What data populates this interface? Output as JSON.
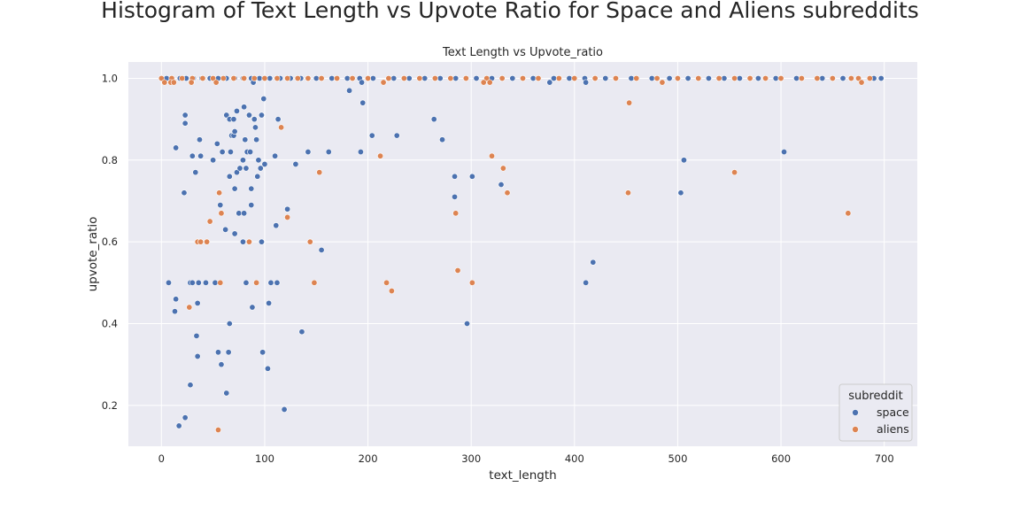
{
  "suptitle": "Histogram of Text Length vs Upvote Ratio for Space and Aliens subreddits",
  "chart_data": {
    "type": "scatter",
    "title": "Text Length vs Upvote_ratio",
    "xlabel": "text_length",
    "ylabel": "upvote_ratio",
    "xlim": [
      -32,
      732
    ],
    "ylim": [
      0.1,
      1.04
    ],
    "xticks": [
      0,
      100,
      200,
      300,
      400,
      500,
      600,
      700
    ],
    "yticks": [
      0.2,
      0.4,
      0.6,
      0.8,
      1.0
    ],
    "ytick_labels": [
      "0.2",
      "0.4",
      "0.6",
      "0.8",
      "1.0"
    ],
    "grid": true,
    "legend": {
      "title": "subreddit",
      "position": "lower-right"
    },
    "series": [
      {
        "name": "space",
        "color": "#4c72b0",
        "points": [
          [
            5,
            1.0
          ],
          [
            18,
            1.0
          ],
          [
            24,
            1.0
          ],
          [
            31,
            1.0
          ],
          [
            39,
            1.0
          ],
          [
            47,
            1.0
          ],
          [
            55,
            1.0
          ],
          [
            63,
            1.0
          ],
          [
            71,
            1.0
          ],
          [
            79,
            1.0
          ],
          [
            87,
            1.0
          ],
          [
            95,
            1.0
          ],
          [
            105,
            1.0
          ],
          [
            115,
            1.0
          ],
          [
            125,
            1.0
          ],
          [
            135,
            1.0
          ],
          [
            150,
            1.0
          ],
          [
            165,
            1.0
          ],
          [
            180,
            1.0
          ],
          [
            192,
            1.0
          ],
          [
            205,
            1.0
          ],
          [
            225,
            1.0
          ],
          [
            240,
            1.0
          ],
          [
            255,
            1.0
          ],
          [
            270,
            1.0
          ],
          [
            285,
            1.0
          ],
          [
            305,
            1.0
          ],
          [
            320,
            1.0
          ],
          [
            340,
            1.0
          ],
          [
            360,
            1.0
          ],
          [
            380,
            1.0
          ],
          [
            395,
            1.0
          ],
          [
            410,
            1.0
          ],
          [
            430,
            1.0
          ],
          [
            455,
            1.0
          ],
          [
            475,
            1.0
          ],
          [
            492,
            1.0
          ],
          [
            510,
            1.0
          ],
          [
            530,
            1.0
          ],
          [
            545,
            1.0
          ],
          [
            560,
            1.0
          ],
          [
            578,
            1.0
          ],
          [
            595,
            1.0
          ],
          [
            615,
            1.0
          ],
          [
            640,
            1.0
          ],
          [
            660,
            1.0
          ],
          [
            690,
            1.0
          ],
          [
            697,
            1.0
          ],
          [
            7,
            0.5
          ],
          [
            14,
            0.46
          ],
          [
            13,
            0.43
          ],
          [
            14,
            0.83
          ],
          [
            17,
            0.15
          ],
          [
            23,
            0.91
          ],
          [
            23,
            0.89
          ],
          [
            22,
            0.72
          ],
          [
            23,
            0.17
          ],
          [
            28,
            0.25
          ],
          [
            28,
            0.5
          ],
          [
            30,
            0.5
          ],
          [
            30,
            0.81
          ],
          [
            33,
            0.77
          ],
          [
            34,
            0.37
          ],
          [
            35,
            0.32
          ],
          [
            35,
            0.45
          ],
          [
            36,
            0.5
          ],
          [
            37,
            0.85
          ],
          [
            38,
            0.81
          ],
          [
            43,
            0.5
          ],
          [
            50,
            0.8
          ],
          [
            52,
            0.5
          ],
          [
            54,
            0.84
          ],
          [
            55,
            0.33
          ],
          [
            57,
            0.69
          ],
          [
            58,
            0.3
          ],
          [
            59,
            0.82
          ],
          [
            62,
            0.63
          ],
          [
            63,
            0.23
          ],
          [
            63,
            0.91
          ],
          [
            65,
            0.33
          ],
          [
            66,
            0.9
          ],
          [
            66,
            0.76
          ],
          [
            66,
            0.4
          ],
          [
            67,
            0.82
          ],
          [
            68,
            0.86
          ],
          [
            70,
            0.9
          ],
          [
            70,
            0.86
          ],
          [
            71,
            0.73
          ],
          [
            71,
            0.62
          ],
          [
            71,
            0.87
          ],
          [
            73,
            0.92
          ],
          [
            73,
            0.77
          ],
          [
            75,
            0.67
          ],
          [
            76,
            0.78
          ],
          [
            79,
            0.6
          ],
          [
            79,
            0.8
          ],
          [
            80,
            0.67
          ],
          [
            80,
            0.93
          ],
          [
            81,
            0.85
          ],
          [
            82,
            0.78
          ],
          [
            82,
            0.5
          ],
          [
            83,
            0.82
          ],
          [
            85,
            0.91
          ],
          [
            86,
            0.82
          ],
          [
            87,
            0.73
          ],
          [
            87,
            0.69
          ],
          [
            88,
            0.44
          ],
          [
            89,
            0.99
          ],
          [
            90,
            0.9
          ],
          [
            91,
            0.88
          ],
          [
            92,
            0.85
          ],
          [
            93,
            0.76
          ],
          [
            94,
            0.8
          ],
          [
            96,
            0.78
          ],
          [
            97,
            0.91
          ],
          [
            97,
            0.6
          ],
          [
            98,
            0.33
          ],
          [
            99,
            0.95
          ],
          [
            100,
            0.79
          ],
          [
            103,
            0.29
          ],
          [
            104,
            0.45
          ],
          [
            106,
            0.5
          ],
          [
            110,
            0.81
          ],
          [
            111,
            0.64
          ],
          [
            112,
            0.5
          ],
          [
            113,
            0.9
          ],
          [
            119,
            0.19
          ],
          [
            122,
            0.68
          ],
          [
            130,
            0.79
          ],
          [
            136,
            0.38
          ],
          [
            142,
            0.82
          ],
          [
            155,
            0.58
          ],
          [
            162,
            0.82
          ],
          [
            182,
            0.97
          ],
          [
            193,
            0.82
          ],
          [
            194,
            0.99
          ],
          [
            195,
            0.94
          ],
          [
            204,
            0.86
          ],
          [
            228,
            0.86
          ],
          [
            264,
            0.9
          ],
          [
            272,
            0.85
          ],
          [
            284,
            0.76
          ],
          [
            284,
            0.71
          ],
          [
            296,
            0.4
          ],
          [
            301,
            0.76
          ],
          [
            329,
            0.74
          ],
          [
            376,
            0.99
          ],
          [
            411,
            0.5
          ],
          [
            411,
            0.99
          ],
          [
            418,
            0.55
          ],
          [
            503,
            0.72
          ],
          [
            506,
            0.8
          ],
          [
            603,
            0.82
          ]
        ]
      },
      {
        "name": "aliens",
        "color": "#dd8452",
        "points": [
          [
            0,
            1.0
          ],
          [
            10,
            1.0
          ],
          [
            20,
            1.0
          ],
          [
            30,
            1.0
          ],
          [
            40,
            1.0
          ],
          [
            50,
            1.0
          ],
          [
            60,
            1.0
          ],
          [
            70,
            1.0
          ],
          [
            80,
            1.0
          ],
          [
            90,
            1.0
          ],
          [
            100,
            1.0
          ],
          [
            112,
            1.0
          ],
          [
            122,
            1.0
          ],
          [
            132,
            1.0
          ],
          [
            142,
            1.0
          ],
          [
            155,
            1.0
          ],
          [
            170,
            1.0
          ],
          [
            185,
            1.0
          ],
          [
            200,
            1.0
          ],
          [
            220,
            1.0
          ],
          [
            235,
            1.0
          ],
          [
            250,
            1.0
          ],
          [
            265,
            1.0
          ],
          [
            280,
            1.0
          ],
          [
            295,
            1.0
          ],
          [
            315,
            1.0
          ],
          [
            330,
            1.0
          ],
          [
            350,
            1.0
          ],
          [
            365,
            1.0
          ],
          [
            385,
            1.0
          ],
          [
            400,
            1.0
          ],
          [
            420,
            1.0
          ],
          [
            440,
            1.0
          ],
          [
            460,
            1.0
          ],
          [
            480,
            1.0
          ],
          [
            500,
            1.0
          ],
          [
            520,
            1.0
          ],
          [
            540,
            1.0
          ],
          [
            555,
            1.0
          ],
          [
            570,
            1.0
          ],
          [
            585,
            1.0
          ],
          [
            600,
            1.0
          ],
          [
            620,
            1.0
          ],
          [
            635,
            1.0
          ],
          [
            650,
            1.0
          ],
          [
            668,
            1.0
          ],
          [
            675,
            1.0
          ],
          [
            686,
            1.0
          ],
          [
            3,
            0.99
          ],
          [
            9,
            0.99
          ],
          [
            12,
            0.99
          ],
          [
            27,
            0.44
          ],
          [
            29,
            0.99
          ],
          [
            35,
            0.6
          ],
          [
            38,
            0.6
          ],
          [
            44,
            0.6
          ],
          [
            47,
            0.65
          ],
          [
            53,
            0.99
          ],
          [
            55,
            0.14
          ],
          [
            56,
            0.72
          ],
          [
            57,
            0.5
          ],
          [
            58,
            0.67
          ],
          [
            85,
            0.6
          ],
          [
            92,
            0.5
          ],
          [
            116,
            0.88
          ],
          [
            122,
            0.66
          ],
          [
            144,
            0.6
          ],
          [
            148,
            0.5
          ],
          [
            153,
            0.77
          ],
          [
            212,
            0.81
          ],
          [
            215,
            0.99
          ],
          [
            218,
            0.5
          ],
          [
            223,
            0.48
          ],
          [
            285,
            0.67
          ],
          [
            287,
            0.53
          ],
          [
            301,
            0.5
          ],
          [
            312,
            0.99
          ],
          [
            318,
            0.99
          ],
          [
            320,
            0.81
          ],
          [
            331,
            0.78
          ],
          [
            335,
            0.72
          ],
          [
            452,
            0.72
          ],
          [
            453,
            0.94
          ],
          [
            485,
            0.99
          ],
          [
            555,
            0.77
          ],
          [
            665,
            0.67
          ],
          [
            678,
            0.99
          ]
        ]
      }
    ]
  }
}
